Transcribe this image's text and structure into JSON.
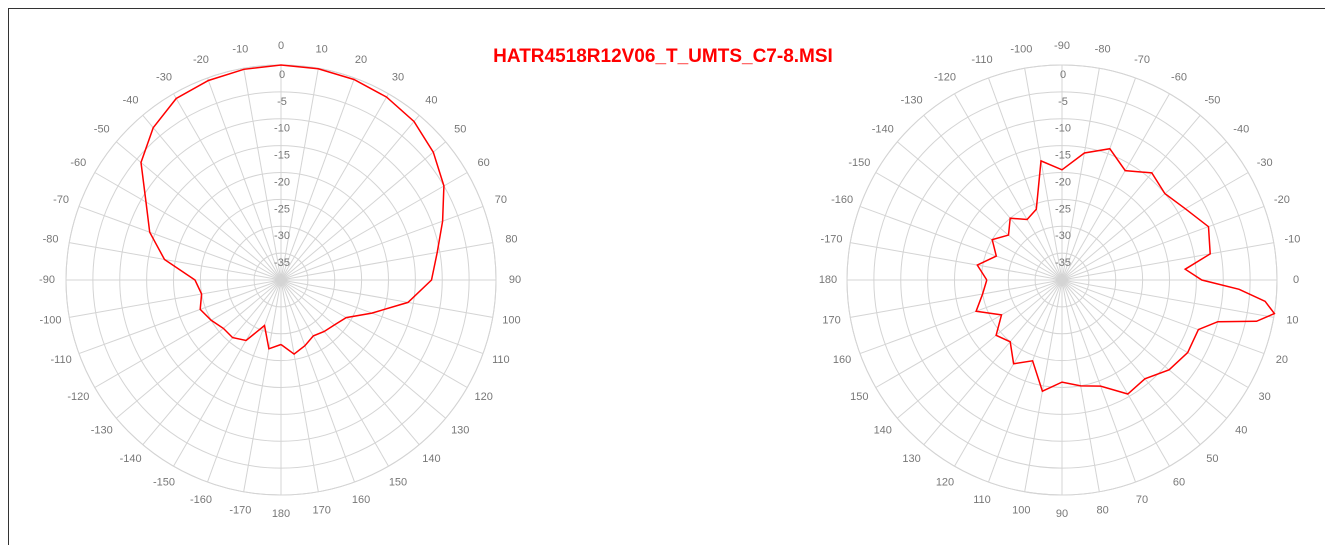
{
  "title": "HATR4518R12V06_T_UMTS_C7-8.MSI",
  "chart_data": [
    {
      "type": "polar",
      "zero_direction": "top",
      "direction": "clockwise",
      "color": "#ff0000",
      "grid": true,
      "rlim": [
        -40,
        0
      ],
      "rticks": [
        0,
        -5,
        -10,
        -15,
        -20,
        -25,
        -30,
        -35
      ],
      "angle_ticks": [
        -170,
        -160,
        -150,
        -140,
        -130,
        -120,
        -110,
        -100,
        -90,
        -80,
        -70,
        -60,
        -50,
        -40,
        -30,
        -20,
        -10,
        0,
        10,
        20,
        30,
        40,
        50,
        60,
        70,
        80,
        90,
        100,
        110,
        120,
        130,
        140,
        150,
        160,
        170,
        180
      ],
      "series": [
        {
          "color": "#ff0000",
          "theta": [
            -180,
            -170,
            -160,
            -150,
            -140,
            -130,
            -120,
            -110,
            -100,
            -90,
            -80,
            -70,
            -60,
            -50,
            -40,
            -30,
            -20,
            -10,
            0,
            10,
            20,
            30,
            40,
            50,
            60,
            70,
            80,
            90,
            100,
            110,
            120,
            130,
            140,
            150,
            160,
            170,
            180
          ],
          "values": [
            -28,
            -27,
            -31,
            -27,
            -26,
            -26,
            -25,
            -24,
            -25,
            -24,
            -18,
            -14,
            -11,
            -6,
            -3,
            -1,
            -0.5,
            -0.2,
            0,
            -0.1,
            -0.3,
            -0.7,
            -1.5,
            -3,
            -5,
            -8,
            -10.5,
            -12,
            -16,
            -22,
            -26,
            -27,
            -27.5,
            -28,
            -27,
            -26,
            -28
          ]
        }
      ]
    },
    {
      "type": "polar",
      "zero_direction": "right",
      "direction": "clockwise",
      "color": "#ff0000",
      "grid": true,
      "rlim": [
        -40,
        0
      ],
      "rticks": [
        0,
        -5,
        -10,
        -15,
        -20,
        -25,
        -30,
        -35
      ],
      "angle_ticks": [
        -170,
        -160,
        -150,
        -140,
        -130,
        -120,
        -110,
        -100,
        -90,
        -80,
        -70,
        -60,
        -50,
        -40,
        -30,
        -20,
        -10,
        0,
        10,
        20,
        30,
        40,
        50,
        60,
        70,
        80,
        90,
        100,
        110,
        120,
        130,
        140,
        150,
        160,
        170,
        180
      ],
      "series": [
        {
          "color": "#ff0000",
          "theta": [
            -180,
            -170,
            -160,
            -150,
            -140,
            -130,
            -120,
            -110,
            -100,
            -90,
            -80,
            -70,
            -60,
            -50,
            -40,
            -30,
            -20,
            -10,
            -5,
            0,
            3,
            6,
            9,
            12,
            15,
            20,
            30,
            40,
            50,
            60,
            70,
            80,
            90,
            100,
            110,
            120,
            130,
            140,
            150,
            160,
            170,
            180
          ],
          "values": [
            -26,
            -24,
            -27,
            -25,
            -27,
            -25,
            -27,
            -26,
            -17.5,
            -19.5,
            -16,
            -14,
            -16.5,
            -14,
            -15,
            -13.5,
            -11,
            -12,
            -17,
            -14,
            -7,
            -2,
            0,
            -3,
            -10,
            -13,
            -13,
            -14,
            -16,
            -15.5,
            -19,
            -20,
            -21,
            -19,
            -24,
            -22,
            -25,
            -24,
            -27,
            -23,
            -25,
            -26
          ]
        }
      ]
    }
  ]
}
